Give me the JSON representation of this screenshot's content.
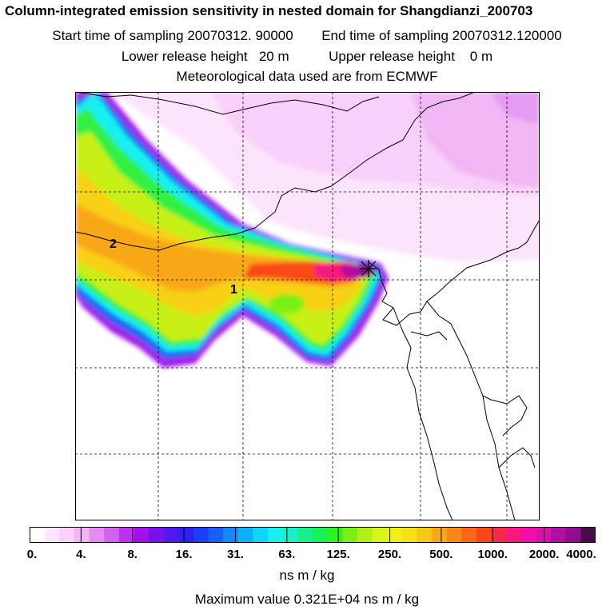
{
  "title": "Column-integrated emission sensitivity in nested domain for Shangdianzi_200703",
  "sampling": {
    "start": "Start time of sampling 20070312. 90000",
    "end": "End time of sampling 20070312.120000"
  },
  "release": {
    "lower": "Lower release height   20 m",
    "upper": "Upper release height    0 m"
  },
  "met": "Meteorological data used are from ECMWF",
  "map": {
    "label_1": "1",
    "label_2": "2"
  },
  "colorbar": {
    "ticks": [
      "0.",
      "4.",
      "8.",
      "16.",
      "31.",
      "63.",
      "125.",
      "250.",
      "500.",
      "1000.",
      "2000.",
      "4000."
    ],
    "colors": [
      "#ffffff",
      "#ffe8ff",
      "#fbd0fb",
      "#f2b4f4",
      "#e48af0",
      "#d262ee",
      "#bd33ec",
      "#a310ea",
      "#7a10ec",
      "#5218ee",
      "#2c22f0",
      "#1840f2",
      "#1860f4",
      "#1488f6",
      "#10b0f8",
      "#10d4fa",
      "#18f0f0",
      "#18f0c8",
      "#18f090",
      "#18f058",
      "#30f020",
      "#78f018",
      "#b0f018",
      "#d8f418",
      "#f0f018",
      "#f8e018",
      "#f8c818",
      "#f8a818",
      "#f88818",
      "#f86818",
      "#f84818",
      "#f82848",
      "#f81880",
      "#f010a8",
      "#d810b0",
      "#b010a0",
      "#900c90",
      "#4a0a4a"
    ],
    "units": "ns m / kg"
  },
  "maximum": "Maximum value  0.321E+04 ns m / kg"
}
